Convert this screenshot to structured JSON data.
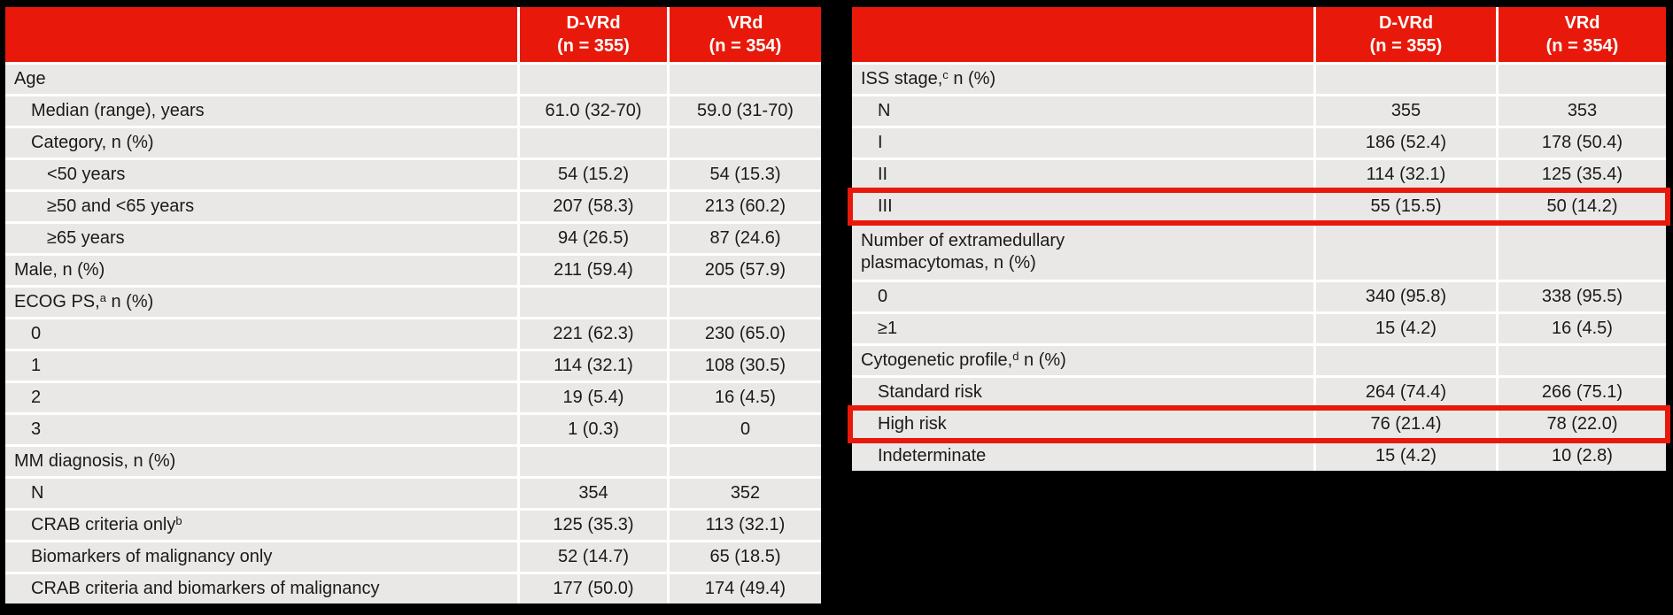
{
  "colors": {
    "header_red": "#E8190A",
    "highlight_border_red": "#E8190A",
    "row_gray": "#EAE8E7",
    "body_text": "#1A1A1A",
    "header_text": "#FFFFFF",
    "separator_white": "#FFFFFF",
    "background_black": "#000000"
  },
  "tables": [
    {
      "header": {
        "c0": "",
        "c1l1": "D-VRd",
        "c1l2": "(n = 355)",
        "c2l1": "VRd",
        "c2l2": "(n = 354)"
      },
      "rows": [
        {
          "label": "Age",
          "indent": 0,
          "v1": "",
          "v2": ""
        },
        {
          "label": "Median (range), years",
          "indent": 1,
          "v1": "61.0 (32-70)",
          "v2": "59.0 (31-70)"
        },
        {
          "label": "Category, n (%)",
          "indent": 1,
          "v1": "",
          "v2": ""
        },
        {
          "label": "<50 years",
          "indent": 2,
          "v1": "54 (15.2)",
          "v2": "54 (15.3)"
        },
        {
          "label": "≥50 and <65 years",
          "indent": 2,
          "v1": "207 (58.3)",
          "v2": "213 (60.2)"
        },
        {
          "label": "≥65 years",
          "indent": 2,
          "v1": "94 (26.5)",
          "v2": "87 (24.6)"
        },
        {
          "label": "Male, n (%)",
          "indent": 0,
          "v1": "211 (59.4)",
          "v2": "205 (57.9)"
        },
        {
          "label": "ECOG PS,",
          "sup": "a",
          "label_post": " n (%)",
          "indent": 0,
          "v1": "",
          "v2": ""
        },
        {
          "label": "0",
          "indent": 1,
          "v1": "221 (62.3)",
          "v2": "230 (65.0)"
        },
        {
          "label": "1",
          "indent": 1,
          "v1": "114 (32.1)",
          "v2": "108 (30.5)"
        },
        {
          "label": "2",
          "indent": 1,
          "v1": "19 (5.4)",
          "v2": "16 (4.5)"
        },
        {
          "label": "3",
          "indent": 1,
          "v1": "1 (0.3)",
          "v2": "0"
        },
        {
          "label": "MM diagnosis, n (%)",
          "indent": 0,
          "v1": "",
          "v2": ""
        },
        {
          "label": "N",
          "indent": 1,
          "v1": "354",
          "v2": "352"
        },
        {
          "label": "CRAB criteria only",
          "sup": "b",
          "label_post": "",
          "indent": 1,
          "v1": "125 (35.3)",
          "v2": "113 (32.1)"
        },
        {
          "label": "Biomarkers of malignancy only",
          "indent": 1,
          "v1": "52 (14.7)",
          "v2": "65 (18.5)"
        },
        {
          "label": "CRAB criteria and biomarkers of malignancy",
          "indent": 1,
          "v1": "177 (50.0)",
          "v2": "174 (49.4)"
        }
      ]
    },
    {
      "header": {
        "c0": "",
        "c1l1": "D-VRd",
        "c1l2": "(n = 355)",
        "c2l1": "VRd",
        "c2l2": "(n = 354)"
      },
      "rows": [
        {
          "label": "ISS stage,",
          "sup": "c",
          "label_post": " n (%)",
          "indent": 0,
          "v1": "",
          "v2": ""
        },
        {
          "label": "N",
          "indent": 1,
          "v1": "355",
          "v2": "353"
        },
        {
          "label": "I",
          "indent": 1,
          "v1": "186 (52.4)",
          "v2": "178 (50.4)"
        },
        {
          "label": "II",
          "indent": 1,
          "v1": "114 (32.1)",
          "v2": "125 (35.4)"
        },
        {
          "label": "III",
          "indent": 1,
          "v1": "55 (15.5)",
          "v2": "50 (14.2)",
          "highlight": true
        },
        {
          "label": "Number of extramedullary plasmacytomas, n (%)",
          "indent": 0,
          "v1": "",
          "v2": "",
          "tall": true
        },
        {
          "label": "0",
          "indent": 1,
          "v1": "340 (95.8)",
          "v2": "338 (95.5)"
        },
        {
          "label": "≥1",
          "indent": 1,
          "v1": "15 (4.2)",
          "v2": "16 (4.5)"
        },
        {
          "label": "Cytogenetic profile,",
          "sup": "d",
          "label_post": " n (%)",
          "indent": 0,
          "v1": "",
          "v2": ""
        },
        {
          "label": "Standard risk",
          "indent": 1,
          "v1": "264 (74.4)",
          "v2": "266 (75.1)"
        },
        {
          "label": "High risk",
          "indent": 1,
          "v1": "76 (21.4)",
          "v2": "78 (22.0)",
          "highlight": true
        },
        {
          "label": "Indeterminate",
          "indent": 1,
          "v1": "15 (4.2)",
          "v2": "10 (2.8)"
        }
      ]
    }
  ]
}
